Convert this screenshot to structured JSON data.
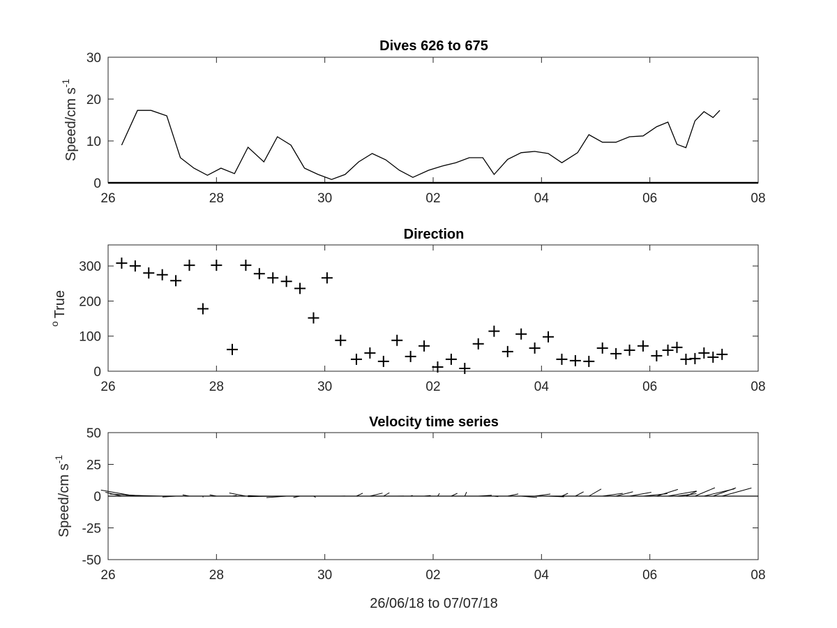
{
  "chart_data": [
    {
      "type": "line",
      "title": "Dives 626 to 675",
      "ylabel": "Speed/cm s",
      "ylabel_sup": "-1",
      "xlabel": "",
      "xlim": [
        "2018-06-26",
        "2018-07-08"
      ],
      "ylim": [
        0,
        30
      ],
      "xtick_dates": [
        "2018-06-26",
        "2018-06-28",
        "2018-06-30",
        "2018-07-02",
        "2018-07-04",
        "2018-07-06",
        "2018-07-08"
      ],
      "xtick_labels": [
        "26",
        "28",
        "30",
        "02",
        "04",
        "06",
        "08"
      ],
      "yticks": [
        0,
        10,
        20,
        30
      ],
      "ytick_labels": [
        "0",
        "10",
        "20",
        "30"
      ],
      "grid": false,
      "series": [
        {
          "x": [
            "2018-06-26 06:00",
            "2018-06-26 13:00",
            "2018-06-26 19:00",
            "2018-06-27 02:00",
            "2018-06-27 08:00",
            "2018-06-27 14:00",
            "2018-06-27 20:00",
            "2018-06-28 02:00",
            "2018-06-28 08:00",
            "2018-06-28 14:00",
            "2018-06-28 21:00",
            "2018-06-29 03:00",
            "2018-06-29 09:00",
            "2018-06-29 15:00",
            "2018-06-29 21:00",
            "2018-06-30 03:00",
            "2018-06-30 09:00",
            "2018-06-30 15:00",
            "2018-06-30 21:00",
            "2018-07-01 03:00",
            "2018-07-01 09:00",
            "2018-07-01 15:00",
            "2018-07-01 22:00",
            "2018-07-02 04:00",
            "2018-07-02 10:00",
            "2018-07-02 16:00",
            "2018-07-02 22:00",
            "2018-07-03 03:00",
            "2018-07-03 09:00",
            "2018-07-03 15:00",
            "2018-07-03 21:00",
            "2018-07-04 03:00",
            "2018-07-04 09:00",
            "2018-07-04 16:00",
            "2018-07-04 21:00",
            "2018-07-05 03:00",
            "2018-07-05 09:00",
            "2018-07-05 15:00",
            "2018-07-05 21:00",
            "2018-07-06 03:00",
            "2018-07-06 08:00",
            "2018-07-06 12:00",
            "2018-07-06 16:00",
            "2018-07-06 20:00",
            "2018-07-07 00:00",
            "2018-07-07 04:00",
            "2018-07-07 07:00"
          ],
          "y": [
            9,
            17.3,
            17.3,
            16,
            6,
            3.5,
            1.8,
            3.5,
            2.2,
            8.5,
            5,
            11,
            9,
            3.5,
            2,
            0.8,
            2,
            5,
            7,
            5.5,
            3,
            1.3,
            3,
            4,
            4.8,
            6,
            6,
            2,
            5.6,
            7.2,
            7.5,
            7,
            4.8,
            7.2,
            11.5,
            9.7,
            9.7,
            11,
            11.2,
            13.4,
            14.5,
            9.2,
            8.4,
            14.8,
            17,
            15.6,
            17.3
          ]
        }
      ]
    },
    {
      "type": "scatter",
      "title": "Direction",
      "ylabel": "True",
      "ylabel_sup": "o",
      "xlabel": "",
      "xlim": [
        "2018-06-26",
        "2018-07-08"
      ],
      "ylim": [
        0,
        360
      ],
      "xtick_dates": [
        "2018-06-26",
        "2018-06-28",
        "2018-06-30",
        "2018-07-02",
        "2018-07-04",
        "2018-07-06",
        "2018-07-08"
      ],
      "xtick_labels": [
        "26",
        "28",
        "30",
        "02",
        "04",
        "06",
        "08"
      ],
      "yticks": [
        0,
        100,
        200,
        300
      ],
      "ytick_labels": [
        "0",
        "100",
        "200",
        "300"
      ],
      "grid": false,
      "marker": "+",
      "series": [
        {
          "x": [
            "2018-06-26 06:00",
            "2018-06-26 12:00",
            "2018-06-26 18:00",
            "2018-06-27 00:00",
            "2018-06-27 06:00",
            "2018-06-27 12:00",
            "2018-06-27 18:00",
            "2018-06-28 00:00",
            "2018-06-28 07:00",
            "2018-06-28 13:00",
            "2018-06-28 19:00",
            "2018-06-29 01:00",
            "2018-06-29 07:00",
            "2018-06-29 13:00",
            "2018-06-29 19:00",
            "2018-06-30 01:00",
            "2018-06-30 07:00",
            "2018-06-30 14:00",
            "2018-06-30 20:00",
            "2018-07-01 02:00",
            "2018-07-01 08:00",
            "2018-07-01 14:00",
            "2018-07-01 20:00",
            "2018-07-02 02:00",
            "2018-07-02 08:00",
            "2018-07-02 14:00",
            "2018-07-02 20:00",
            "2018-07-03 03:00",
            "2018-07-03 09:00",
            "2018-07-03 15:00",
            "2018-07-03 21:00",
            "2018-07-04 03:00",
            "2018-07-04 09:00",
            "2018-07-04 15:00",
            "2018-07-04 21:00",
            "2018-07-05 03:00",
            "2018-07-05 09:00",
            "2018-07-05 15:00",
            "2018-07-05 21:00",
            "2018-07-06 03:00",
            "2018-07-06 08:00",
            "2018-07-06 12:00",
            "2018-07-06 16:00",
            "2018-07-06 20:00",
            "2018-07-07 00:00",
            "2018-07-07 04:00",
            "2018-07-07 08:00"
          ],
          "y": [
            308,
            300,
            280,
            275,
            258,
            302,
            178,
            302,
            62,
            302,
            278,
            266,
            256,
            236,
            152,
            266,
            88,
            34,
            52,
            28,
            88,
            42,
            72,
            12,
            34,
            8,
            78,
            114,
            56,
            106,
            66,
            98,
            34,
            30,
            28,
            66,
            50,
            60,
            72,
            44,
            60,
            68,
            34,
            36,
            52,
            40,
            48
          ]
        }
      ]
    },
    {
      "type": "line",
      "subtype": "feather",
      "title": "Velocity time series",
      "ylabel": "Speed/cm s",
      "ylabel_sup": "-1",
      "xlabel": "26/06/18 to 07/07/18",
      "xlim": [
        "2018-06-26",
        "2018-07-08"
      ],
      "ylim": [
        -50,
        50
      ],
      "xtick_dates": [
        "2018-06-26",
        "2018-06-28",
        "2018-06-30",
        "2018-07-02",
        "2018-07-04",
        "2018-07-06",
        "2018-07-08"
      ],
      "xtick_labels": [
        "26",
        "28",
        "30",
        "02",
        "04",
        "06",
        "08"
      ],
      "yticks": [
        -50,
        -25,
        0,
        25,
        50
      ],
      "ytick_labels": [
        "-50",
        "-25",
        "0",
        "25",
        "50"
      ],
      "grid": false,
      "zero_line": true,
      "series": [
        {
          "x": [
            "2018-06-26 06:00",
            "2018-06-26 12:00",
            "2018-06-26 18:00",
            "2018-06-27 00:00",
            "2018-06-27 06:00",
            "2018-06-27 12:00",
            "2018-06-27 18:00",
            "2018-06-28 00:00",
            "2018-06-28 07:00",
            "2018-06-28 13:00",
            "2018-06-28 19:00",
            "2018-06-29 01:00",
            "2018-06-29 07:00",
            "2018-06-29 13:00",
            "2018-06-29 19:00",
            "2018-06-30 01:00",
            "2018-06-30 07:00",
            "2018-06-30 14:00",
            "2018-06-30 20:00",
            "2018-07-01 02:00",
            "2018-07-01 08:00",
            "2018-07-01 14:00",
            "2018-07-01 20:00",
            "2018-07-02 02:00",
            "2018-07-02 08:00",
            "2018-07-02 14:00",
            "2018-07-02 20:00",
            "2018-07-03 03:00",
            "2018-07-03 09:00",
            "2018-07-03 15:00",
            "2018-07-03 21:00",
            "2018-07-04 03:00",
            "2018-07-04 09:00",
            "2018-07-04 15:00",
            "2018-07-04 21:00",
            "2018-07-05 03:00",
            "2018-07-05 09:00",
            "2018-07-05 15:00",
            "2018-07-05 21:00",
            "2018-07-06 03:00",
            "2018-07-06 08:00",
            "2018-07-06 12:00",
            "2018-07-06 16:00",
            "2018-07-06 20:00",
            "2018-07-07 00:00",
            "2018-07-07 04:00",
            "2018-07-07 08:00"
          ],
          "speed": [
            9,
            17.3,
            17.3,
            16,
            6,
            3.5,
            1.8,
            3.5,
            2.2,
            8.5,
            5,
            11,
            9,
            3.5,
            2,
            0.8,
            2,
            5,
            7,
            5.5,
            3,
            1.3,
            3,
            4,
            4.8,
            6,
            6,
            2,
            5.6,
            7.2,
            7.5,
            7,
            4.8,
            7.2,
            11.5,
            9.7,
            9.7,
            11,
            11.2,
            13.4,
            14.5,
            9.2,
            8.4,
            14.8,
            17,
            15.6,
            17.3
          ],
          "direction_deg_true": [
            308,
            300,
            280,
            275,
            258,
            302,
            178,
            302,
            62,
            302,
            278,
            266,
            256,
            236,
            152,
            266,
            88,
            34,
            52,
            28,
            88,
            42,
            72,
            12,
            34,
            8,
            78,
            114,
            56,
            106,
            66,
            98,
            34,
            30,
            28,
            66,
            50,
            60,
            72,
            44,
            60,
            68,
            34,
            36,
            52,
            40,
            48
          ]
        }
      ]
    }
  ]
}
